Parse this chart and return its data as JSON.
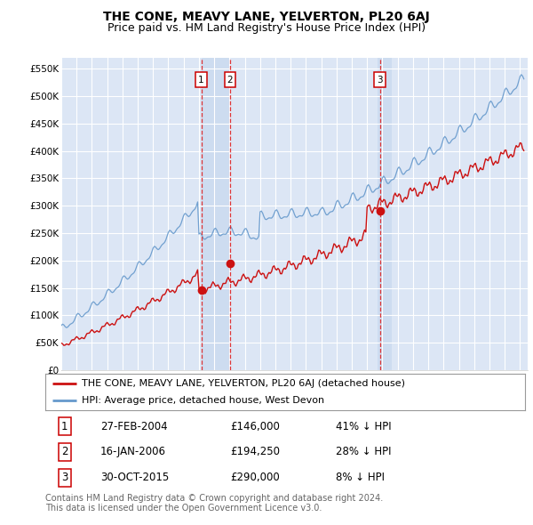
{
  "title": "THE CONE, MEAVY LANE, YELVERTON, PL20 6AJ",
  "subtitle": "Price paid vs. HM Land Registry's House Price Index (HPI)",
  "ylabel_ticks": [
    "£0",
    "£50K",
    "£100K",
    "£150K",
    "£200K",
    "£250K",
    "£300K",
    "£350K",
    "£400K",
    "£450K",
    "£500K",
    "£550K"
  ],
  "ytick_values": [
    0,
    50000,
    100000,
    150000,
    200000,
    250000,
    300000,
    350000,
    400000,
    450000,
    500000,
    550000
  ],
  "ylim": [
    0,
    570000
  ],
  "xlim_start": 1995.0,
  "xlim_end": 2025.5,
  "background_color": "#dce6f5",
  "plot_bg_color": "#dce6f5",
  "grid_color": "#ffffff",
  "sale_dates": [
    2004.15,
    2006.04,
    2015.83
  ],
  "sale_prices": [
    146000,
    194250,
    290000
  ],
  "sale_labels": [
    "1",
    "2",
    "3"
  ],
  "vline_color": "#dd2222",
  "marker_box_color": "#cc0000",
  "red_line_color": "#cc1111",
  "blue_line_color": "#6699cc",
  "highlight_color": "#c8d8ee",
  "legend_label_red": "THE CONE, MEAVY LANE, YELVERTON, PL20 6AJ (detached house)",
  "legend_label_blue": "HPI: Average price, detached house, West Devon",
  "table_entries": [
    {
      "num": "1",
      "date": "27-FEB-2004",
      "price": "£146,000",
      "hpi": "41% ↓ HPI"
    },
    {
      "num": "2",
      "date": "16-JAN-2006",
      "price": "£194,250",
      "hpi": "28% ↓ HPI"
    },
    {
      "num": "3",
      "date": "30-OCT-2015",
      "price": "£290,000",
      "hpi": "8% ↓ HPI"
    }
  ],
  "footer_text": "Contains HM Land Registry data © Crown copyright and database right 2024.\nThis data is licensed under the Open Government Licence v3.0.",
  "title_fontsize": 10,
  "subtitle_fontsize": 9,
  "tick_fontsize": 7.5,
  "legend_fontsize": 8,
  "table_fontsize": 8.5
}
